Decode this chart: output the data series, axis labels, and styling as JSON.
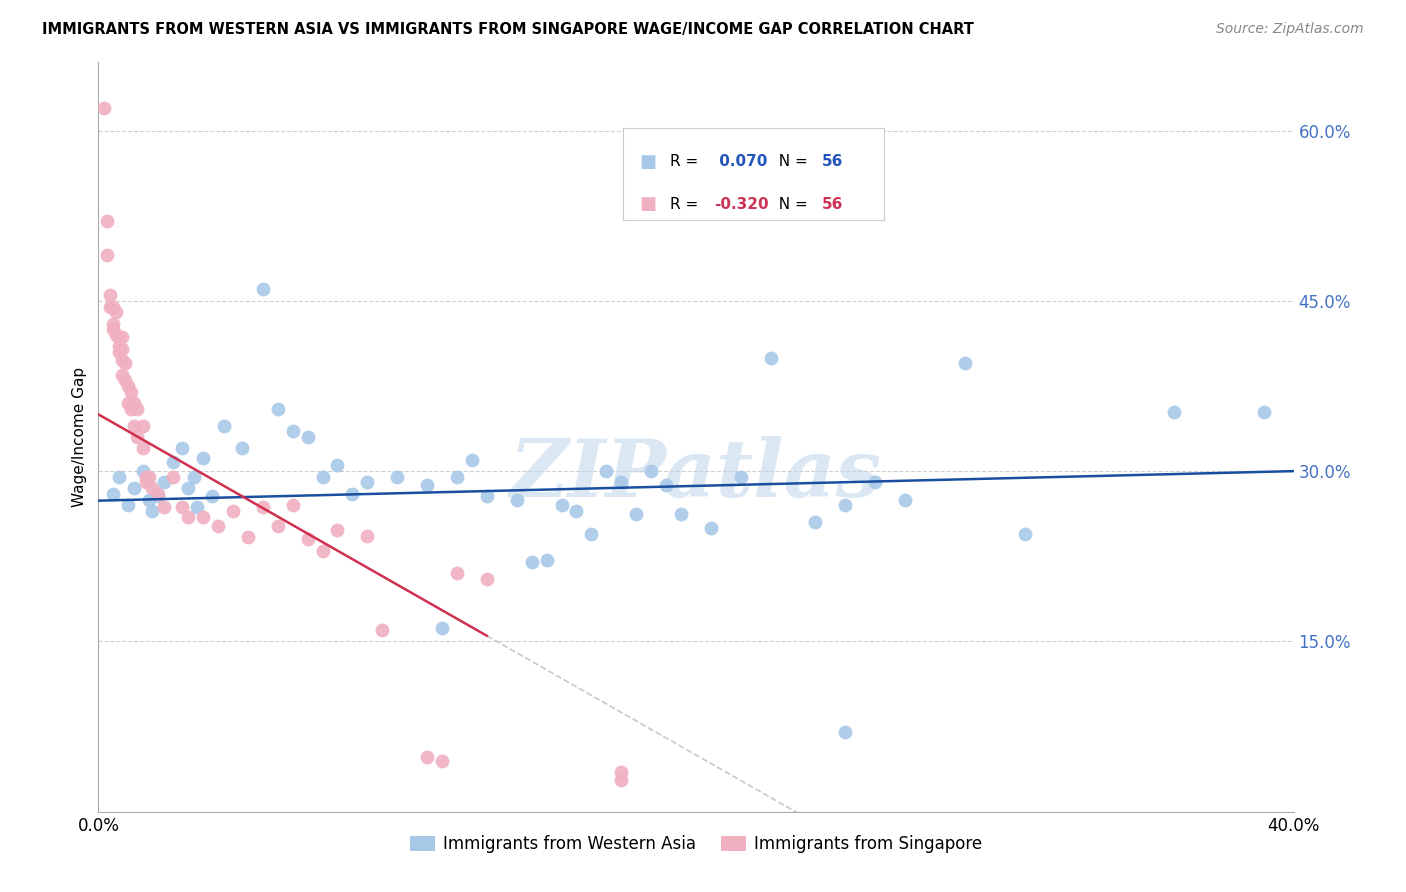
{
  "title": "IMMIGRANTS FROM WESTERN ASIA VS IMMIGRANTS FROM SINGAPORE WAGE/INCOME GAP CORRELATION CHART",
  "source": "Source: ZipAtlas.com",
  "ylabel": "Wage/Income Gap",
  "xlim": [
    0.0,
    0.4
  ],
  "ylim": [
    0.0,
    0.66
  ],
  "yticks": [
    0.15,
    0.3,
    0.45,
    0.6
  ],
  "ytick_labels": [
    "15.0%",
    "30.0%",
    "45.0%",
    "60.0%"
  ],
  "legend_label1": "Immigrants from Western Asia",
  "legend_label2": "Immigrants from Singapore",
  "r1": 0.07,
  "r2": -0.32,
  "n1": 56,
  "n2": 56,
  "blue_color": "#a8c8e8",
  "pink_color": "#f0b0c0",
  "trend_blue": "#1a4fa0",
  "trend_pink": "#d03050",
  "trend_pink_dash": "#c8c8c8",
  "watermark": "ZIPatlas",
  "blue_x": [
    0.005,
    0.007,
    0.01,
    0.012,
    0.015,
    0.017,
    0.018,
    0.02,
    0.022,
    0.025,
    0.028,
    0.03,
    0.032,
    0.033,
    0.035,
    0.038,
    0.042,
    0.048,
    0.055,
    0.06,
    0.065,
    0.07,
    0.075,
    0.08,
    0.085,
    0.09,
    0.1,
    0.11,
    0.115,
    0.12,
    0.125,
    0.13,
    0.14,
    0.145,
    0.15,
    0.155,
    0.16,
    0.165,
    0.175,
    0.18,
    0.185,
    0.19,
    0.195,
    0.205,
    0.215,
    0.225,
    0.24,
    0.25,
    0.26,
    0.27,
    0.29,
    0.31,
    0.36,
    0.39,
    0.25,
    0.17
  ],
  "blue_y": [
    0.28,
    0.295,
    0.27,
    0.285,
    0.3,
    0.275,
    0.265,
    0.278,
    0.29,
    0.308,
    0.32,
    0.285,
    0.295,
    0.268,
    0.312,
    0.278,
    0.34,
    0.32,
    0.46,
    0.355,
    0.335,
    0.33,
    0.295,
    0.305,
    0.28,
    0.29,
    0.295,
    0.288,
    0.162,
    0.295,
    0.31,
    0.278,
    0.275,
    0.22,
    0.222,
    0.27,
    0.265,
    0.245,
    0.29,
    0.262,
    0.3,
    0.288,
    0.262,
    0.25,
    0.295,
    0.4,
    0.255,
    0.27,
    0.29,
    0.275,
    0.395,
    0.245,
    0.352,
    0.352,
    0.07,
    0.3
  ],
  "pink_x": [
    0.002,
    0.003,
    0.003,
    0.004,
    0.004,
    0.005,
    0.005,
    0.005,
    0.006,
    0.006,
    0.007,
    0.007,
    0.007,
    0.008,
    0.008,
    0.008,
    0.008,
    0.009,
    0.009,
    0.01,
    0.01,
    0.011,
    0.011,
    0.012,
    0.012,
    0.013,
    0.013,
    0.015,
    0.015,
    0.016,
    0.016,
    0.017,
    0.018,
    0.02,
    0.022,
    0.025,
    0.028,
    0.03,
    0.035,
    0.04,
    0.045,
    0.05,
    0.055,
    0.06,
    0.065,
    0.07,
    0.075,
    0.08,
    0.09,
    0.095,
    0.11,
    0.115,
    0.12,
    0.13,
    0.175,
    0.175
  ],
  "pink_y": [
    0.62,
    0.52,
    0.49,
    0.455,
    0.445,
    0.445,
    0.43,
    0.425,
    0.44,
    0.42,
    0.418,
    0.41,
    0.405,
    0.418,
    0.408,
    0.398,
    0.385,
    0.395,
    0.38,
    0.375,
    0.36,
    0.37,
    0.355,
    0.36,
    0.34,
    0.355,
    0.33,
    0.32,
    0.34,
    0.295,
    0.29,
    0.295,
    0.285,
    0.28,
    0.268,
    0.295,
    0.268,
    0.26,
    0.26,
    0.252,
    0.265,
    0.242,
    0.268,
    0.252,
    0.27,
    0.24,
    0.23,
    0.248,
    0.243,
    0.16,
    0.048,
    0.045,
    0.21,
    0.205,
    0.028,
    0.035
  ]
}
